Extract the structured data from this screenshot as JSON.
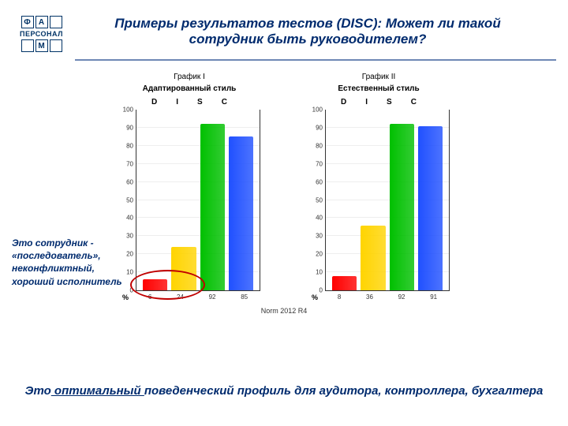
{
  "logo": {
    "cells": [
      "Ф",
      "А",
      "",
      "",
      "М",
      ""
    ],
    "word": "ПЕРСОНАЛ"
  },
  "title": "Примеры результатов тестов (DISC): Может ли такой сотрудник быть руководителем?",
  "side_text": "Это сотрудник - «последователь», неконфликтный, хороший исполнитель",
  "bottom_caption_1": "Это",
  "bottom_caption_underline": " оптимальный ",
  "bottom_caption_2": "поведенческий профиль для аудитора, контроллера, бухгалтера",
  "norm_label": "Norm 2012 R4",
  "axis": {
    "ylim": [
      0,
      100
    ],
    "ticks": [
      0,
      10,
      20,
      30,
      40,
      50,
      60,
      70,
      80,
      90,
      100
    ],
    "grid_color": "#eeeeee",
    "border_color": "#333333"
  },
  "colors": {
    "D": "#ff0000",
    "I": "#ffd400",
    "S": "#00c000",
    "C": "#2050ff",
    "title": "#002b6e",
    "circle": "#c00000"
  },
  "charts": [
    {
      "title": "График I",
      "subtitle": "Адаптированный стиль",
      "letters": [
        "D",
        "I",
        "S",
        "C"
      ],
      "values": [
        6,
        24,
        92,
        85
      ],
      "circle": true
    },
    {
      "title": "График II",
      "subtitle": "Естественный стиль",
      "letters": [
        "D",
        "I",
        "S",
        "C"
      ],
      "values": [
        8,
        36,
        92,
        91
      ],
      "circle": false
    }
  ]
}
